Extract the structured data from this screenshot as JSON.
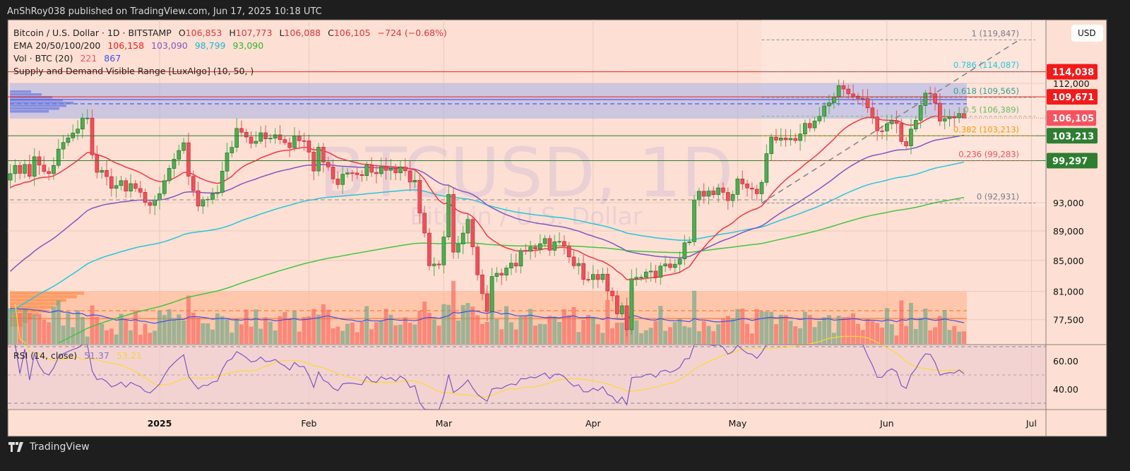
{
  "publish_line": "AnShRoy038 published on TradingView.com, Jun 17, 2025 10:18 UTC",
  "legend": {
    "symbol": "Bitcoin / U.S. Dollar · 1D · BITSTAMP",
    "o_label": "O",
    "o": "106,853",
    "h_label": "H",
    "h": "107,773",
    "l_label": "L",
    "l": "106,088",
    "c_label": "C",
    "c": "106,105",
    "change": "−724 (−0.68%)",
    "ema_label": "EMA 20/50/100/200",
    "ema20": "106,158",
    "ema50": "103,090",
    "ema100": "98,799",
    "ema200": "93,090",
    "vol_label": "Vol · BTC (20)",
    "vol": "221",
    "vol_ma": "867",
    "sd_label": "Supply and Demand Visible Range [LuxAlgo] (10, 50, )",
    "rsi_label": "RSI (14, close)",
    "rsi": "51.37",
    "rsi_ma": "53.21"
  },
  "currency_button": "USD",
  "watermark": {
    "ticker": "BTCUSD, 1D",
    "name": "Bitcoin / U.S. Dollar"
  },
  "brand": "TradingView",
  "colors": {
    "background": "#fde0d3",
    "up": "#4caf50",
    "down": "#f0505a",
    "ema20": "#f23645",
    "ema50": "#7e57c2",
    "ema100": "#26c6da",
    "ema200": "#43c443",
    "rsi": "#7e57c2",
    "rsi_ma": "#fdd835",
    "supply_zone": "#aeb4e8",
    "demand_zone": "#ffb38a"
  },
  "chart_data": {
    "type": "candlestick",
    "scale": "log",
    "y_ticks": [
      112000,
      93000,
      89000,
      85000,
      81000,
      77500
    ],
    "y_tick_labels": [
      "112,000",
      "93,000",
      "89,000",
      "85,000",
      "81,000",
      "77,500"
    ],
    "x_ticks": [
      {
        "date": "2025-01-01",
        "label": "2025"
      },
      {
        "date": "2025-02-01",
        "label": "Feb"
      },
      {
        "date": "2025-03-01",
        "label": "Mar"
      },
      {
        "date": "2025-04-01",
        "label": "Apr"
      },
      {
        "date": "2025-05-01",
        "label": "May"
      },
      {
        "date": "2025-06-01",
        "label": "Jun"
      },
      {
        "date": "2025-07-01",
        "label": "Jul"
      }
    ],
    "date_range": [
      "2024-12-01",
      "2025-06-17"
    ],
    "close_points": [
      [
        "2024-12-01",
        97300
      ],
      [
        "2024-12-04",
        98700
      ],
      [
        "2024-12-05",
        96900
      ],
      [
        "2024-12-06",
        99900
      ],
      [
        "2024-12-09",
        97300
      ],
      [
        "2024-12-11",
        101100
      ],
      [
        "2024-12-15",
        104300
      ],
      [
        "2024-12-16",
        106100
      ],
      [
        "2024-12-17",
        106100
      ],
      [
        "2024-12-18",
        100200
      ],
      [
        "2024-12-19",
        97500
      ],
      [
        "2024-12-20",
        97800
      ],
      [
        "2024-12-22",
        95100
      ],
      [
        "2024-12-26",
        95800
      ],
      [
        "2024-12-30",
        92600
      ],
      [
        "2024-12-31",
        93400
      ],
      [
        "2025-01-03",
        98100
      ],
      [
        "2025-01-06",
        102100
      ],
      [
        "2025-01-07",
        96900
      ],
      [
        "2025-01-09",
        92500
      ],
      [
        "2025-01-13",
        94500
      ],
      [
        "2025-01-15",
        100500
      ],
      [
        "2025-01-17",
        104400
      ],
      [
        "2025-01-20",
        102000
      ],
      [
        "2025-01-22",
        103700
      ],
      [
        "2025-01-26",
        102600
      ],
      [
        "2025-01-27",
        102100
      ],
      [
        "2025-01-31",
        102400
      ],
      [
        "2025-02-02",
        97700
      ],
      [
        "2025-02-03",
        101400
      ],
      [
        "2025-02-06",
        96500
      ],
      [
        "2025-02-10",
        97400
      ],
      [
        "2025-02-14",
        97500
      ],
      [
        "2025-02-20",
        98300
      ],
      [
        "2025-02-23",
        96300
      ],
      [
        "2025-02-24",
        91500
      ],
      [
        "2025-02-25",
        88700
      ],
      [
        "2025-02-26",
        84300
      ],
      [
        "2025-02-28",
        84400
      ],
      [
        "2025-03-02",
        94200
      ],
      [
        "2025-03-03",
        86100
      ],
      [
        "2025-03-04",
        87200
      ],
      [
        "2025-03-06",
        90600
      ],
      [
        "2025-03-07",
        86800
      ],
      [
        "2025-03-09",
        80700
      ],
      [
        "2025-03-10",
        78500
      ],
      [
        "2025-03-11",
        82900
      ],
      [
        "2025-03-14",
        84000
      ],
      [
        "2025-03-19",
        86800
      ],
      [
        "2025-03-24",
        87500
      ],
      [
        "2025-03-26",
        86900
      ],
      [
        "2025-03-28",
        84300
      ],
      [
        "2025-03-31",
        82500
      ],
      [
        "2025-04-02",
        82500
      ],
      [
        "2025-04-03",
        83200
      ],
      [
        "2025-04-06",
        78200
      ],
      [
        "2025-04-07",
        79200
      ],
      [
        "2025-04-08",
        76300
      ],
      [
        "2025-04-09",
        82600
      ],
      [
        "2025-04-13",
        83600
      ],
      [
        "2025-04-18",
        84500
      ],
      [
        "2025-04-21",
        87500
      ],
      [
        "2025-04-22",
        93400
      ],
      [
        "2025-04-25",
        94700
      ],
      [
        "2025-04-30",
        94200
      ],
      [
        "2025-05-01",
        96500
      ],
      [
        "2025-05-05",
        94300
      ],
      [
        "2025-05-08",
        103000
      ],
      [
        "2025-05-12",
        102800
      ],
      [
        "2025-05-14",
        103500
      ],
      [
        "2025-05-18",
        106400
      ],
      [
        "2025-05-21",
        109600
      ],
      [
        "2025-05-22",
        111600
      ],
      [
        "2025-05-26",
        109400
      ],
      [
        "2025-05-28",
        107800
      ],
      [
        "2025-05-30",
        104000
      ],
      [
        "2025-06-02",
        105700
      ],
      [
        "2025-06-05",
        101600
      ],
      [
        "2025-06-06",
        104300
      ],
      [
        "2025-06-09",
        110300
      ],
      [
        "2025-06-10",
        110200
      ],
      [
        "2025-06-11",
        108600
      ],
      [
        "2025-06-12",
        105600
      ],
      [
        "2025-06-13",
        106000
      ],
      [
        "2025-06-16",
        106853
      ],
      [
        "2025-06-17",
        106105
      ]
    ],
    "last_candle": {
      "open": 106853,
      "high": 107773,
      "low": 106088,
      "close": 106105
    },
    "ema_start": {
      "ema20": 95000,
      "ema50": 83000,
      "ema100": 78000,
      "ema200": 72000
    },
    "levels": [
      {
        "value": 114038,
        "label": "114,038",
        "color": "#f21b1b"
      },
      {
        "value": 109671,
        "label": "109,671",
        "color": "#f21b1b"
      },
      {
        "value": 106105,
        "label": "106,105",
        "color": "#f7525f",
        "current_price": true
      },
      {
        "value": 103213,
        "label": "103,213",
        "color": "#2e7d32"
      },
      {
        "value": 99297,
        "label": "99,297",
        "color": "#2e7d32"
      }
    ],
    "fib_levels": [
      {
        "value": 119847,
        "label": "1 (119,847)",
        "color": "#787b86"
      },
      {
        "value": 114087,
        "label": "0.786 (114,087)",
        "color": "#26c6da"
      },
      {
        "value": 109565,
        "label": "0.618 (109,565)",
        "color": "#3a9c8a"
      },
      {
        "value": 106389,
        "label": "0.5 (106,389)",
        "color": "#66bb6a"
      },
      {
        "value": 103213,
        "label": "0.382 (103,213)",
        "color": "#ff9800"
      },
      {
        "value": 99283,
        "label": "0.236 (99,283)",
        "color": "#f0505a"
      },
      {
        "value": 92931,
        "label": "0 (92,931)",
        "color": "#787b86"
      }
    ],
    "fib_start_date": "2025-05-06",
    "supply_zone": [
      106000,
      112000
    ],
    "demand_zone": [
      74500,
      81000
    ],
    "rsi_ticks": [
      60,
      40
    ],
    "rsi_tick_labels": [
      "60.00",
      "40.00"
    ],
    "rsi_bands": [
      70,
      30
    ]
  }
}
